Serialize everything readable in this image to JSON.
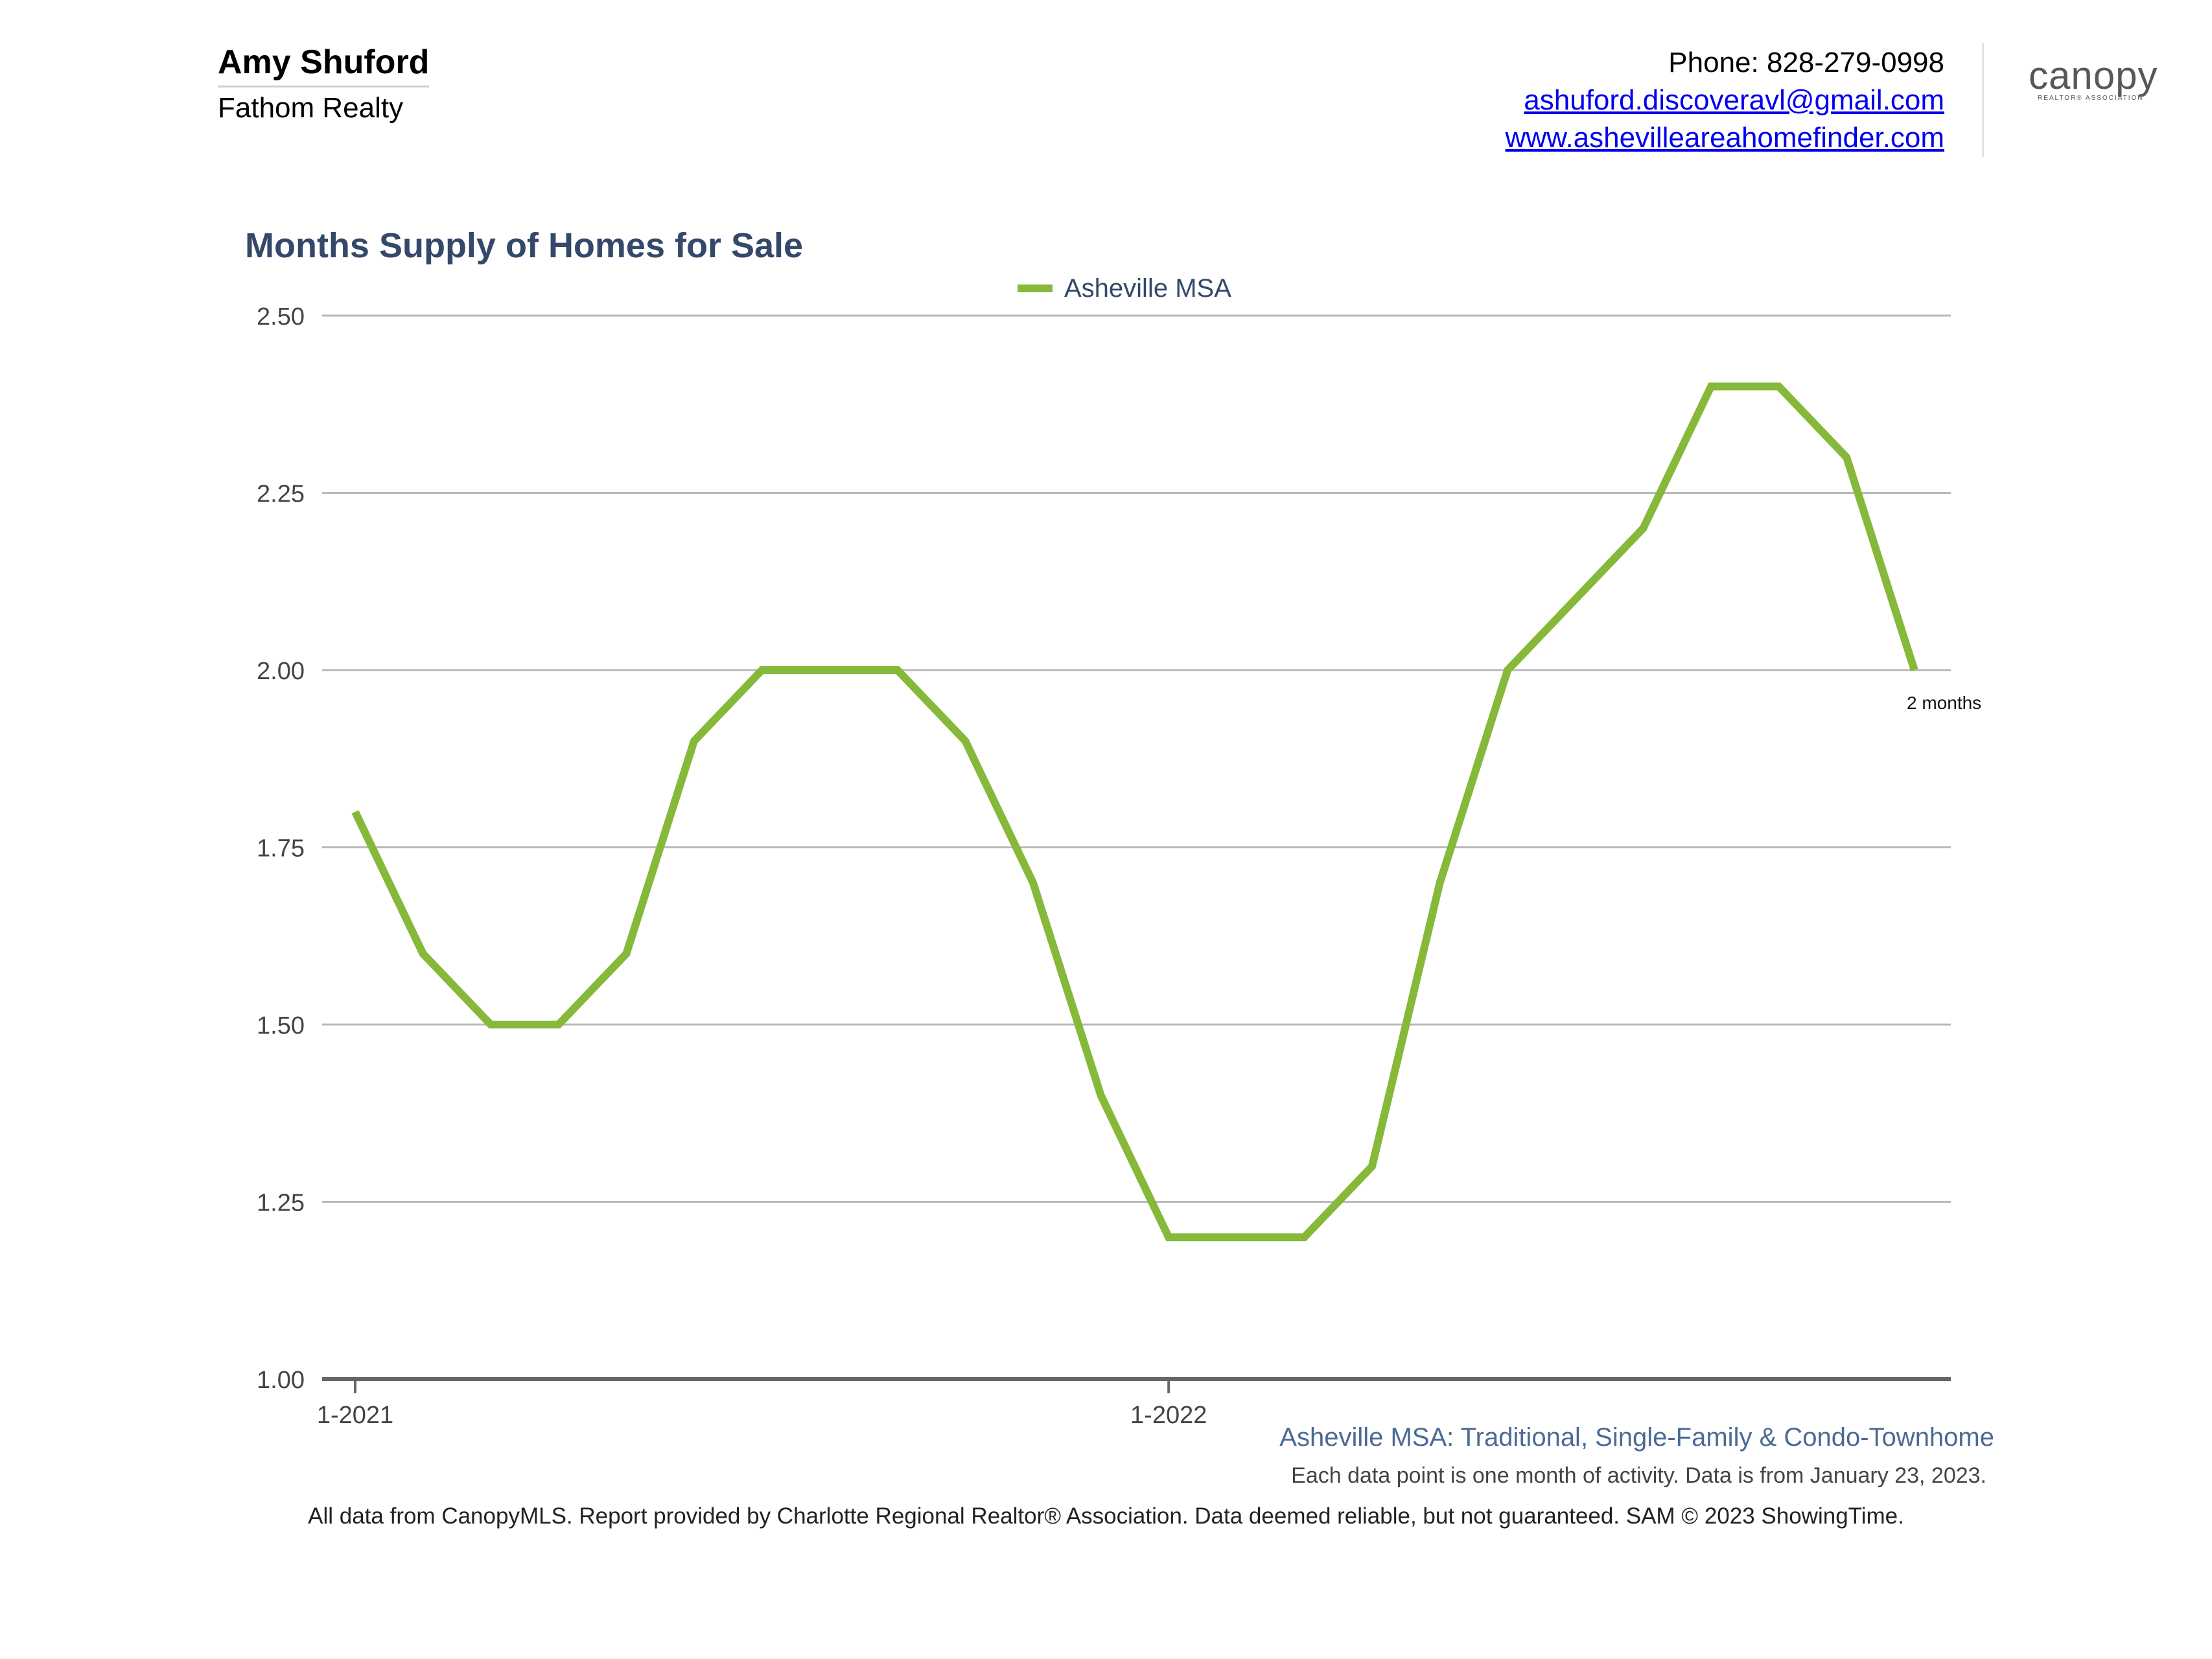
{
  "header": {
    "agent_name": "Amy Shuford",
    "company": "Fathom Realty",
    "phone": "Phone: 828-279-0998",
    "email": "ashuford.discoveravl@gmail.com",
    "website": "www.ashevilleareahomefinder.com",
    "logo_text": "canopy",
    "logo_subtext": "REALTOR® ASSOCIATION"
  },
  "chart_data": {
    "type": "line",
    "title": "Months Supply of Homes for Sale",
    "xlabel": "",
    "ylabel": "",
    "x": [
      "1-2021",
      "2-2021",
      "3-2021",
      "4-2021",
      "5-2021",
      "6-2021",
      "7-2021",
      "8-2021",
      "9-2021",
      "10-2021",
      "11-2021",
      "12-2021",
      "1-2022",
      "2-2022",
      "3-2022",
      "4-2022",
      "5-2022",
      "6-2022",
      "7-2022",
      "8-2022",
      "9-2022",
      "10-2022",
      "11-2022",
      "12-2022"
    ],
    "x_tick_labels": [
      "1-2021",
      "1-2022"
    ],
    "y_ticks": [
      "1.00",
      "1.25",
      "1.50",
      "1.75",
      "2.00",
      "2.25",
      "2.50"
    ],
    "ylim": [
      1.0,
      2.5
    ],
    "grid": true,
    "legend_position": "top-center",
    "series": [
      {
        "name": "Asheville MSA",
        "color": "#86b83a",
        "values": [
          1.8,
          1.6,
          1.5,
          1.5,
          1.6,
          1.9,
          2.0,
          2.0,
          2.0,
          1.9,
          1.7,
          1.4,
          1.2,
          1.2,
          1.2,
          1.3,
          1.7,
          2.0,
          2.1,
          2.2,
          2.4,
          2.4,
          2.3,
          2.0
        ]
      }
    ],
    "end_label": "2 months"
  },
  "captions": {
    "subtitle": "Asheville MSA: Traditional, Single-Family & Condo-Townhome",
    "note": "Each data point is one month of activity. Data is from January 23, 2023."
  },
  "footer": "All data from CanopyMLS. Report provided by Charlotte Regional Realtor® Association. Data deemed reliable, but not guaranteed. SAM © 2023 ShowingTime."
}
